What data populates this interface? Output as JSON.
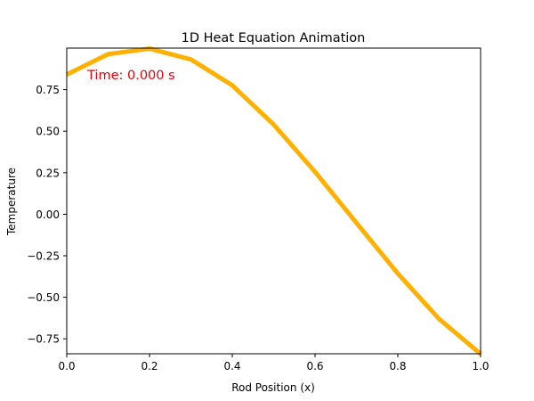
{
  "chart_data": {
    "type": "line",
    "title": "1D Heat Equation Animation",
    "xlabel": "Rod Position (x)",
    "ylabel": "Temperature",
    "xlim": [
      0.0,
      1.0
    ],
    "ylim": [
      -0.84,
      1.0
    ],
    "xticks": [
      "0.0",
      "0.2",
      "0.4",
      "0.6",
      "0.8",
      "1.0"
    ],
    "yticks": [
      "0.75",
      "0.50",
      "0.25",
      "0.00",
      "−0.25",
      "−0.50",
      "−0.75"
    ],
    "grid": false,
    "annotation": "Time: 0.000 s",
    "series": [
      {
        "color": "#ffb000",
        "x": [
          0.0,
          0.1,
          0.2,
          0.3,
          0.4,
          0.5,
          0.6,
          0.7,
          0.8,
          0.9,
          1.0
        ],
        "y": [
          0.841,
          0.964,
          0.997,
          0.932,
          0.776,
          0.54,
          0.255,
          -0.052,
          -0.357,
          -0.631,
          -0.841
        ]
      }
    ]
  },
  "colors": {
    "line": "#ffb000",
    "annotation": "#e8000b",
    "axes": "#000000"
  }
}
